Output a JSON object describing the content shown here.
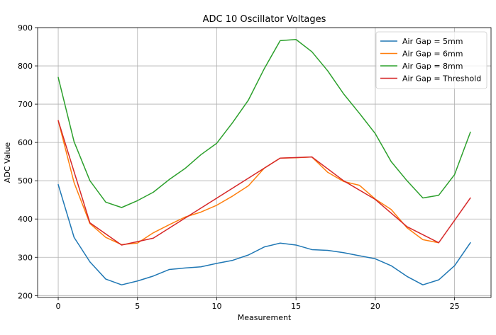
{
  "chart_data": {
    "type": "line",
    "title": "ADC 10 Oscillator Voltages",
    "xlabel": "Measurement",
    "ylabel": "ADC Value",
    "xlim": [
      -1.3,
      27.3
    ],
    "ylim": [
      195,
      900
    ],
    "x_ticks": [
      0,
      5,
      10,
      15,
      20,
      25
    ],
    "y_ticks": [
      200,
      300,
      400,
      500,
      600,
      700,
      800,
      900
    ],
    "grid": true,
    "legend_position": "top-right",
    "series": [
      {
        "name": "Air Gap = 5mm",
        "color": "#1f77b4",
        "x": [
          0,
          1,
          2,
          3,
          4,
          5,
          6,
          7,
          8,
          9,
          10,
          11,
          12,
          13,
          14,
          15,
          16,
          17,
          18,
          19,
          20,
          21,
          22,
          23,
          24,
          25,
          26
        ],
        "values": [
          490,
          352,
          288,
          243,
          228,
          238,
          251,
          268,
          272,
          275,
          284,
          292,
          306,
          327,
          337,
          332,
          320,
          318,
          312,
          304,
          296,
          278,
          250,
          228,
          241,
          278,
          338
        ]
      },
      {
        "name": "Air Gap = 6mm",
        "color": "#ff7f0e",
        "x": [
          0,
          1,
          2,
          3,
          4,
          5,
          6,
          7,
          8,
          9,
          10,
          11,
          12,
          13,
          14,
          15,
          16,
          17,
          18,
          19,
          20,
          21,
          22,
          23,
          24
        ],
        "values": [
          657,
          495,
          388,
          352,
          333,
          337,
          364,
          385,
          405,
          418,
          436,
          460,
          487,
          533,
          559,
          560,
          562,
          522,
          498,
          488,
          452,
          425,
          377,
          346,
          338
        ]
      },
      {
        "name": "Air Gap = 8mm",
        "color": "#2ca02c",
        "x": [
          0,
          1,
          2,
          3,
          4,
          5,
          6,
          7,
          8,
          9,
          10,
          11,
          12,
          13,
          14,
          15,
          16,
          17,
          18,
          19,
          20,
          21,
          22,
          23,
          24,
          25,
          26
        ],
        "values": [
          770,
          602,
          500,
          444,
          430,
          448,
          470,
          503,
          532,
          568,
          598,
          652,
          711,
          793,
          866,
          869,
          837,
          787,
          727,
          676,
          623,
          550,
          500,
          455,
          462,
          516,
          627
        ]
      },
      {
        "name": "Air Gap = Threshold",
        "color": "#d62728",
        "x": [
          0,
          2,
          4,
          6,
          14,
          16,
          18,
          20,
          22,
          24,
          26
        ],
        "values": [
          657,
          390,
          332,
          350,
          559,
          562,
          500,
          451,
          380,
          338,
          455
        ]
      }
    ]
  }
}
